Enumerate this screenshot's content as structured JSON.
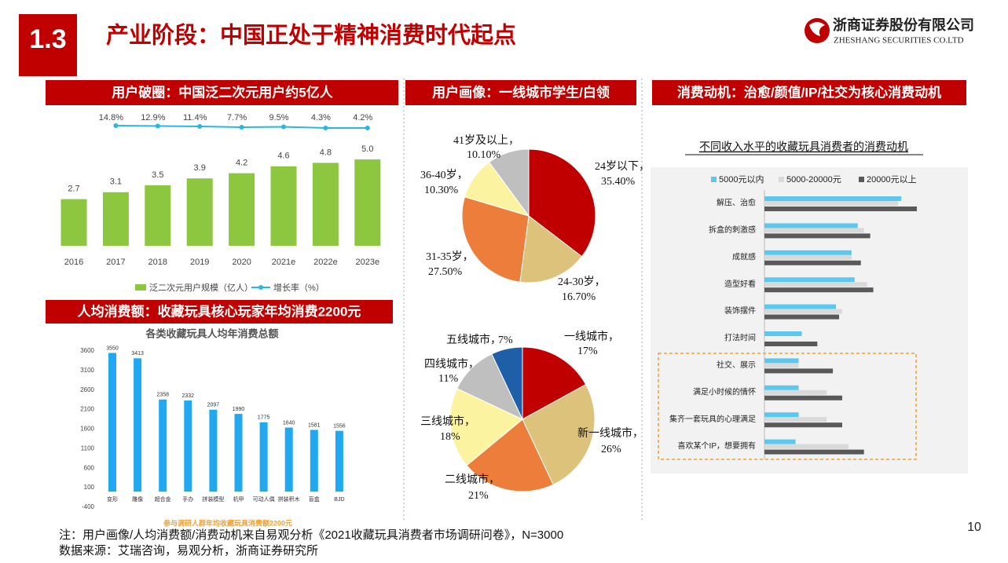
{
  "header": {
    "section": "1.3",
    "title": "产业阶段：中国正处于精神消费时代起点"
  },
  "logo": {
    "name": "浙商证券股份有限公司",
    "english": "ZHESHANG SECURITIES CO.LTD"
  },
  "panels": [
    "用户破圈：中国泛二次元用户约5亿人",
    "用户画像：一线城市学生/白领",
    "消费动机：治愈/颜值/IP/社交为核心消费动机",
    "人均消费额：收藏玩具核心玩家年均消费2200元"
  ],
  "notes": [
    "注：用户画像/人均消费额/消费动机来自易观分析《2021收藏玩具消费者市场调研问卷》，N=3000",
    "数据来源：艾瑞咨询，易观分析，浙商证券研究所"
  ],
  "page_number": "10",
  "chart_data": [
    {
      "type": "combo",
      "categories": [
        "2016",
        "2017",
        "2018",
        "2019",
        "2020",
        "2021e",
        "2022e",
        "2023e"
      ],
      "series": [
        {
          "name": "泛二次元用户规模（亿人）",
          "type": "bar",
          "color": "#8dc63f",
          "values": [
            2.7,
            3.1,
            3.5,
            3.9,
            4.2,
            4.6,
            4.8,
            5.0
          ],
          "value_labels": [
            "2.7",
            "3.1",
            "3.5",
            "3.9",
            "4.2",
            "4.6",
            "4.8",
            "5.0"
          ]
        },
        {
          "name": "增长率（%）",
          "type": "line",
          "color": "#29b6e0",
          "values": [
            null,
            14.8,
            12.9,
            11.4,
            7.7,
            9.5,
            4.3,
            4.2
          ],
          "value_labels": [
            null,
            "14.8%",
            "12.9%",
            "11.4%",
            "7.7%",
            "9.5%",
            "4.3%",
            "4.2%"
          ]
        }
      ]
    },
    {
      "type": "pie",
      "categories": [
        "24岁以下，",
        "24-30岁，",
        "31-35岁，",
        "36-40岁，",
        "41岁及以上，"
      ],
      "values": [
        35.4,
        16.7,
        27.5,
        10.3,
        10.1
      ],
      "value_labels": [
        "35.40%",
        "16.70%",
        "27.50%",
        "10.30%",
        "10.10%"
      ],
      "colors": [
        "#c00000",
        "#dcc27a",
        "#ed7d3b",
        "#fcf3a0",
        "#bfbfbf"
      ]
    },
    {
      "type": "pie",
      "categories": [
        "一线城市，",
        "新一线城市，",
        "二线城市，",
        "三线城市，",
        "四线城市，",
        "五线城市，"
      ],
      "values": [
        17,
        26,
        21,
        18,
        11,
        7
      ],
      "value_labels": [
        "17%",
        "26%",
        "21%",
        "18%",
        "11%",
        "7%"
      ],
      "colors": [
        "#c00000",
        "#dcc27a",
        "#ed7d3b",
        "#fcf3a0",
        "#bfbfbf",
        "#1f5fa8"
      ]
    },
    {
      "type": "hbar",
      "title": "不同收入水平的收藏玩具消费者的消费动机",
      "categories": [
        "解压、治愈",
        "拆盒的刺激感",
        "成就感",
        "造型好看",
        "装饰摆件",
        "打法时间",
        "社交、展示",
        "满足小时候的情怀",
        "集齐一套玩具的心理满足",
        "喜欢某个IP，想要拥有"
      ],
      "series": [
        {
          "name": "5000元以内",
          "color": "#5bc8f0",
          "values": [
            44,
            30,
            28,
            29,
            23,
            12,
            11,
            11,
            11,
            10
          ]
        },
        {
          "name": "5000-20000元",
          "color": "#d9d9d9",
          "values": [
            43,
            32,
            28,
            33,
            25,
            null,
            11,
            20,
            20,
            27
          ]
        },
        {
          "name": "20000元以上",
          "color": "#595959",
          "values": [
            49,
            34,
            31,
            35,
            24,
            17,
            22,
            25,
            25,
            32
          ]
        }
      ]
    },
    {
      "type": "bar",
      "title": "各类收藏玩具人均年消费总额",
      "caption": "参与调研人群年均收藏玩具消费额2200元",
      "categories": [
        "变形",
        "雕像",
        "超合金",
        "手办",
        "拼装模型",
        "机甲",
        "可动人偶",
        "拼装积木",
        "盲盒",
        "BJD"
      ],
      "values": [
        3550,
        3413,
        2358,
        2332,
        2097,
        1990,
        1775,
        1640,
        1581,
        1556
      ],
      "color": "#20a8f0",
      "ylim": [
        -400,
        3600
      ],
      "yticks": [
        -400,
        100,
        600,
        1100,
        1600,
        2100,
        2600,
        3100,
        3600
      ],
      "grid": false
    }
  ]
}
